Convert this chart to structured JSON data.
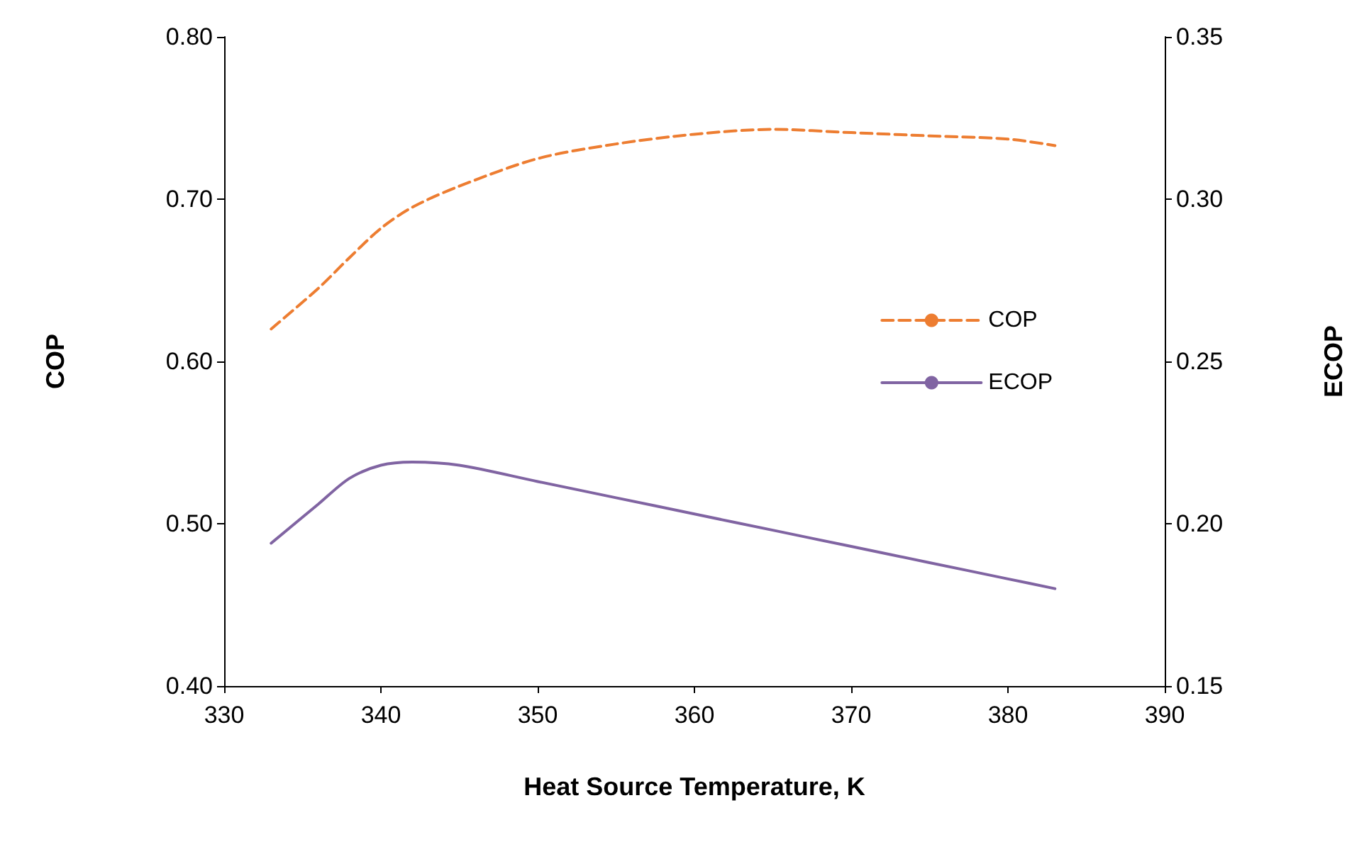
{
  "chart_data": {
    "type": "line",
    "xlabel": "Heat Source Temperature, K",
    "ylabel": "COP",
    "y2label": "ECOP",
    "xlim": [
      330,
      390
    ],
    "xticks": [
      330,
      340,
      350,
      360,
      370,
      380,
      390
    ],
    "ylim": [
      0.4,
      0.8
    ],
    "yticks": [
      {
        "value": 0.4,
        "label": "0.40"
      },
      {
        "value": 0.5,
        "label": "0.50"
      },
      {
        "value": 0.6,
        "label": "0.60"
      },
      {
        "value": 0.7,
        "label": "0.70"
      },
      {
        "value": 0.8,
        "label": "0.80"
      }
    ],
    "y2lim": [
      0.15,
      0.35
    ],
    "y2ticks": [
      {
        "value": 0.15,
        "label": "0.15"
      },
      {
        "value": 0.2,
        "label": "0.20"
      },
      {
        "value": 0.25,
        "label": "0.25"
      },
      {
        "value": 0.3,
        "label": "0.30"
      },
      {
        "value": 0.35,
        "label": "0.35"
      }
    ],
    "x": [
      333,
      336,
      338,
      340,
      342,
      345,
      350,
      355,
      360,
      365,
      370,
      375,
      380,
      383
    ],
    "series": [
      {
        "name": "COP",
        "color": "#ed7d31",
        "line_style": "dashed",
        "values": [
          0.62,
          0.645,
          0.664,
          0.682,
          0.695,
          0.708,
          0.725,
          0.734,
          0.74,
          0.743,
          0.741,
          0.739,
          0.737,
          0.733
        ]
      },
      {
        "name": "ECOP",
        "color": "#8064a2",
        "line_style": "solid",
        "axis": "y2",
        "values": [
          0.194,
          0.206,
          0.214,
          0.218,
          0.219,
          0.218,
          0.213,
          0.208,
          0.203,
          0.198,
          0.193,
          0.188,
          0.183,
          0.18
        ]
      }
    ],
    "legend": "right",
    "grid": false,
    "marker": "none"
  }
}
